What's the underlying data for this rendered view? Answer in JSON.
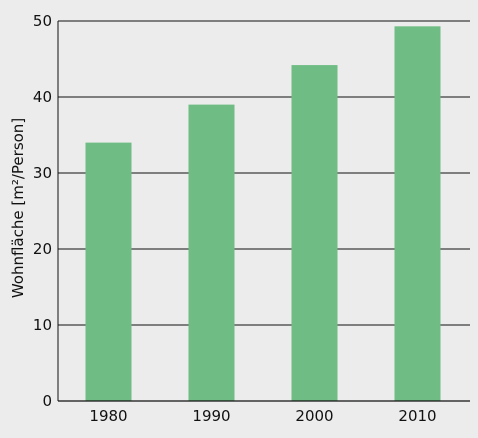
{
  "chart_data": {
    "type": "bar",
    "title": "",
    "xlabel": "",
    "ylabel": "Wohnfläche [m²/Person]",
    "categories": [
      "1980",
      "1990",
      "2000",
      "2010"
    ],
    "values": [
      34,
      39,
      44.2,
      49.3
    ],
    "ylim": [
      0,
      50
    ],
    "yticks": [
      "0",
      "10",
      "20",
      "30",
      "40",
      "50"
    ],
    "grid": true,
    "legend": "none",
    "colors": {
      "bar": "#6fbd84",
      "background": "#ececec",
      "grid": "#111111",
      "text": "#111111"
    }
  }
}
